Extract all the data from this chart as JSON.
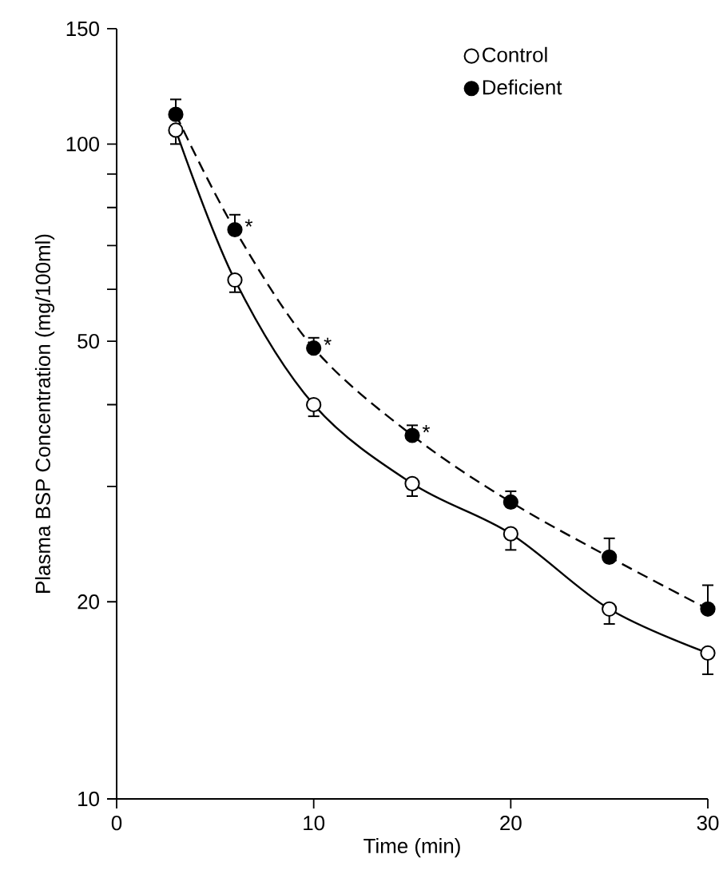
{
  "chart_data": {
    "type": "line",
    "xlabel": "Time (min)",
    "ylabel": "Plasma BSP Concentration (mg/100ml)",
    "x": [
      3,
      6,
      10,
      15,
      20,
      25,
      30
    ],
    "series": [
      {
        "name": "Control",
        "color": "#000000",
        "line_style": "solid",
        "values": [
          105,
          62,
          40,
          30.3,
          25.4,
          19.5,
          16.7
        ],
        "errors": [
          [
            100,
            105
          ],
          [
            59.4,
            62
          ],
          [
            38.4,
            40
          ],
          [
            29,
            30.3
          ],
          [
            24,
            25.4
          ],
          [
            18.5,
            19.5
          ],
          [
            15.5,
            16.7
          ]
        ]
      },
      {
        "name": "Deficient",
        "color": "#000000",
        "line_style": "dashed",
        "values": [
          111,
          74,
          48.8,
          35.9,
          28.4,
          23.4,
          19.5
        ],
        "errors": [
          [
            111,
            117
          ],
          [
            74,
            78
          ],
          [
            48.8,
            50.6
          ],
          [
            35.9,
            37.2
          ],
          [
            28.4,
            29.5
          ],
          [
            23.4,
            25
          ],
          [
            19.5,
            21.2
          ]
        ]
      }
    ],
    "log": "y",
    "marker": "circle",
    "legend": "top",
    "grid": false,
    "xlim": [
      0,
      30
    ],
    "xticks": [
      0,
      10,
      20,
      30
    ],
    "ylim": [
      10,
      150
    ],
    "yticks": [
      10,
      20,
      {
        "value": 30,
        "label": null
      },
      {
        "value": 40,
        "label": null
      },
      50,
      {
        "value": 60,
        "label": null
      },
      {
        "value": 70,
        "label": null
      },
      {
        "value": 80,
        "label": null
      },
      {
        "value": 90,
        "label": null
      },
      100,
      150
    ],
    "annotations": [
      {
        "text": "*",
        "x": 6,
        "y": 74
      },
      {
        "text": "*",
        "x": 10,
        "y": 48.8
      },
      {
        "text": "*",
        "x": 15,
        "y": 35.9
      }
    ]
  }
}
